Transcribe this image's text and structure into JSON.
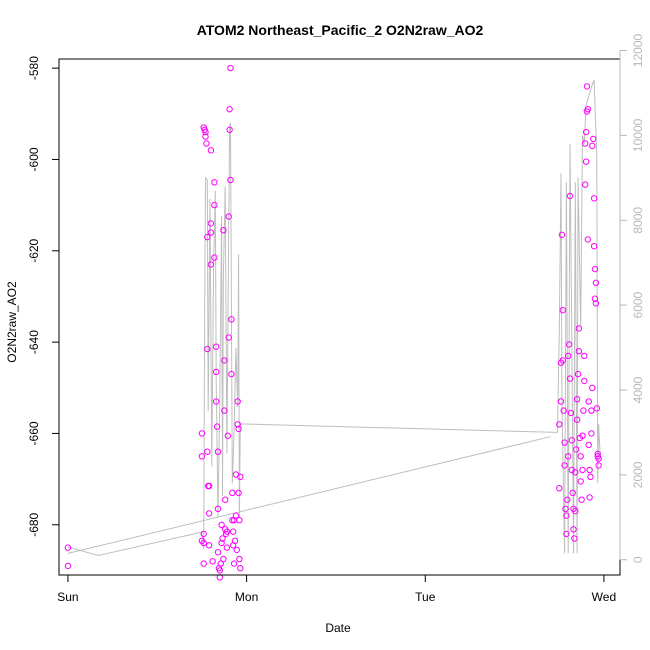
{
  "chart_data": {
    "type": "scatter",
    "title": "ATOM2 Northeast_Pacific_2 O2N2raw_AO2",
    "xlabel": "Date",
    "ylabel": "O2N2raw_AO2",
    "x_ticks": [
      "Sun",
      "Mon",
      "Tue",
      "Wed"
    ],
    "x_tick_values": [
      0,
      1,
      2,
      3
    ],
    "xlim": [
      -0.05,
      3.09
    ],
    "ylim": [
      -691,
      -578
    ],
    "y_ticks": [
      -680,
      -660,
      -640,
      -620,
      -600,
      -580
    ],
    "y2lim": [
      -360,
      11800
    ],
    "y2_ticks": [
      0,
      2000,
      4000,
      6000,
      8000,
      10000,
      12000
    ],
    "grid": false,
    "colors": {
      "points": "#ff00ff",
      "secondary_line": "#bebebe",
      "secondary_axis": "#b8b8b8"
    },
    "series": [
      {
        "type": "scatter",
        "values": [
          [
            0.0,
            -685.0
          ],
          [
            0.0,
            -689.0
          ],
          [
            0.75,
            -665.0
          ],
          [
            0.75,
            -660.0
          ],
          [
            0.75,
            -683.5
          ],
          [
            0.76,
            -684.0
          ],
          [
            0.76,
            -682.0
          ],
          [
            0.76,
            -688.5
          ],
          [
            0.76,
            -593.0
          ],
          [
            0.765,
            -593.5
          ],
          [
            0.77,
            -594.0
          ],
          [
            0.77,
            -595.0
          ],
          [
            0.775,
            -596.5
          ],
          [
            0.78,
            -617.0
          ],
          [
            0.78,
            -641.5
          ],
          [
            0.78,
            -664.0
          ],
          [
            0.785,
            -671.5
          ],
          [
            0.79,
            -671.5
          ],
          [
            0.79,
            -677.5
          ],
          [
            0.79,
            -684.5
          ],
          [
            0.8,
            -598.0
          ],
          [
            0.8,
            -614.0
          ],
          [
            0.8,
            -616.0
          ],
          [
            0.8,
            -623.0
          ],
          [
            0.81,
            -688.0
          ],
          [
            0.82,
            -605.0
          ],
          [
            0.82,
            -610.0
          ],
          [
            0.82,
            -621.5
          ],
          [
            0.83,
            -641.0
          ],
          [
            0.83,
            -646.5
          ],
          [
            0.83,
            -653.0
          ],
          [
            0.84,
            -664.0
          ],
          [
            0.835,
            -658.5
          ],
          [
            0.84,
            -676.5
          ],
          [
            0.84,
            -686.0
          ],
          [
            0.845,
            -689.5
          ],
          [
            0.85,
            -691.5
          ],
          [
            0.85,
            -690.0
          ],
          [
            0.855,
            -688.5
          ],
          [
            0.86,
            -684.0
          ],
          [
            0.86,
            -680.0
          ],
          [
            0.865,
            -683.0
          ],
          [
            0.87,
            -687.5
          ],
          [
            0.87,
            -615.5
          ],
          [
            0.875,
            -644.0
          ],
          [
            0.875,
            -655.0
          ],
          [
            0.88,
            -674.5
          ],
          [
            0.88,
            -681.0
          ],
          [
            0.885,
            -682.0
          ],
          [
            0.89,
            -685.0
          ],
          [
            0.89,
            -681.5
          ],
          [
            0.895,
            -660.5
          ],
          [
            0.9,
            -639.0
          ],
          [
            0.9,
            -612.5
          ],
          [
            0.905,
            -593.5
          ],
          [
            0.905,
            -589.0
          ],
          [
            0.91,
            -580.0
          ],
          [
            0.91,
            -604.5
          ],
          [
            0.915,
            -635.0
          ],
          [
            0.915,
            -647.0
          ],
          [
            0.92,
            -673.0
          ],
          [
            0.92,
            -679.0
          ],
          [
            0.925,
            -681.5
          ],
          [
            0.925,
            -684.5
          ],
          [
            0.93,
            -688.5
          ],
          [
            0.93,
            -679.0
          ],
          [
            0.935,
            -683.5
          ],
          [
            0.94,
            -669.0
          ],
          [
            0.94,
            -678.0
          ],
          [
            0.945,
            -685.5
          ],
          [
            0.95,
            -653.0
          ],
          [
            0.95,
            -658.0
          ],
          [
            0.955,
            -659.0
          ],
          [
            0.955,
            -673.0
          ],
          [
            0.96,
            -679.0
          ],
          [
            0.96,
            -687.5
          ],
          [
            0.965,
            -689.5
          ],
          [
            0.965,
            -669.5
          ],
          [
            2.75,
            -672.0
          ],
          [
            2.75,
            -658.0
          ],
          [
            2.76,
            -653.0
          ],
          [
            2.76,
            -644.5
          ],
          [
            2.765,
            -616.5
          ],
          [
            2.77,
            -633.0
          ],
          [
            2.77,
            -644.0
          ],
          [
            2.775,
            -655.0
          ],
          [
            2.78,
            -662.0
          ],
          [
            2.78,
            -667.0
          ],
          [
            2.785,
            -676.5
          ],
          [
            2.79,
            -682.0
          ],
          [
            2.79,
            -678.0
          ],
          [
            2.795,
            -674.5
          ],
          [
            2.8,
            -665.0
          ],
          [
            2.8,
            -643.0
          ],
          [
            2.805,
            -640.5
          ],
          [
            2.81,
            -608.0
          ],
          [
            2.81,
            -648.0
          ],
          [
            2.815,
            -655.5
          ],
          [
            2.82,
            -661.5
          ],
          [
            2.82,
            -668.0
          ],
          [
            2.825,
            -673.0
          ],
          [
            2.83,
            -676.5
          ],
          [
            2.83,
            -681.0
          ],
          [
            2.835,
            -683.0
          ],
          [
            2.84,
            -677.0
          ],
          [
            2.84,
            -668.5
          ],
          [
            2.845,
            -663.5
          ],
          [
            2.85,
            -657.0
          ],
          [
            2.85,
            -652.5
          ],
          [
            2.855,
            -647.0
          ],
          [
            2.86,
            -642.0
          ],
          [
            2.86,
            -637.0
          ],
          [
            2.865,
            -661.0
          ],
          [
            2.87,
            -665.0
          ],
          [
            2.87,
            -670.5
          ],
          [
            2.875,
            -674.5
          ],
          [
            2.88,
            -668.0
          ],
          [
            2.88,
            -660.5
          ],
          [
            2.885,
            -655.0
          ],
          [
            2.89,
            -648.5
          ],
          [
            2.89,
            -643.0
          ],
          [
            2.895,
            -605.5
          ],
          [
            2.895,
            -596.5
          ],
          [
            2.9,
            -594.0
          ],
          [
            2.9,
            -600.5
          ],
          [
            2.905,
            -589.5
          ],
          [
            2.905,
            -584.0
          ],
          [
            2.91,
            -589.0
          ],
          [
            2.91,
            -617.5
          ],
          [
            2.915,
            -653.0
          ],
          [
            2.915,
            -662.5
          ],
          [
            2.92,
            -668.0
          ],
          [
            2.92,
            -674.0
          ],
          [
            2.925,
            -669.5
          ],
          [
            2.93,
            -660.0
          ],
          [
            2.93,
            -655.0
          ],
          [
            2.935,
            -650.0
          ],
          [
            2.935,
            -597.0
          ],
          [
            2.94,
            -595.5
          ],
          [
            2.945,
            -608.5
          ],
          [
            2.945,
            -619.0
          ],
          [
            2.95,
            -624.0
          ],
          [
            2.95,
            -630.5
          ],
          [
            2.955,
            -627.0
          ],
          [
            2.955,
            -631.5
          ],
          [
            2.96,
            -654.5
          ],
          [
            2.965,
            -664.5
          ],
          [
            2.965,
            -665.0
          ],
          [
            2.97,
            -665.5
          ],
          [
            2.97,
            -667.0
          ]
        ]
      },
      {
        "type": "line",
        "axis": "right",
        "values": [
          [
            0.0,
            300
          ],
          [
            0.17,
            100
          ],
          [
            0.75,
            650
          ],
          [
            0.76,
            250
          ],
          [
            0.765,
            5500
          ],
          [
            0.77,
            9000
          ],
          [
            0.78,
            8950
          ],
          [
            0.785,
            3500
          ],
          [
            0.795,
            8500
          ],
          [
            0.805,
            2200
          ],
          [
            0.815,
            6800
          ],
          [
            0.825,
            8700
          ],
          [
            0.83,
            4200
          ],
          [
            0.84,
            1000
          ],
          [
            0.85,
            3800
          ],
          [
            0.86,
            8100
          ],
          [
            0.865,
            1500
          ],
          [
            0.87,
            6700
          ],
          [
            0.88,
            8800
          ],
          [
            0.89,
            2500
          ],
          [
            0.9,
            7800
          ],
          [
            0.905,
            10200
          ],
          [
            0.91,
            10300
          ],
          [
            0.92,
            1800
          ],
          [
            0.93,
            3000
          ],
          [
            0.94,
            5000
          ],
          [
            0.95,
            3600
          ],
          [
            0.955,
            7200
          ],
          [
            0.96,
            1000
          ],
          [
            0.965,
            3200
          ],
          [
            2.74,
            3000
          ],
          [
            2.75,
            5400
          ],
          [
            2.76,
            9100
          ],
          [
            2.765,
            3800
          ],
          [
            2.78,
            150
          ],
          [
            2.79,
            8900
          ],
          [
            2.8,
            150
          ],
          [
            2.81,
            9800
          ],
          [
            2.82,
            5200
          ],
          [
            2.83,
            150
          ],
          [
            2.84,
            8900
          ],
          [
            2.85,
            150
          ],
          [
            2.855,
            9000
          ],
          [
            2.87,
            5500
          ],
          [
            2.88,
            10000
          ],
          [
            2.89,
            9800
          ],
          [
            2.9,
            10700
          ],
          [
            2.92,
            11000
          ],
          [
            2.935,
            11200
          ],
          [
            2.945,
            11300
          ],
          [
            2.96,
            9500
          ],
          [
            2.965,
            1800
          ],
          [
            2.97,
            3200
          ],
          [
            2.98,
            2400
          ]
        ]
      },
      {
        "type": "line",
        "axis": "right",
        "values": [
          [
            0.0,
            150
          ],
          [
            2.7,
            2900
          ]
        ]
      }
    ]
  }
}
